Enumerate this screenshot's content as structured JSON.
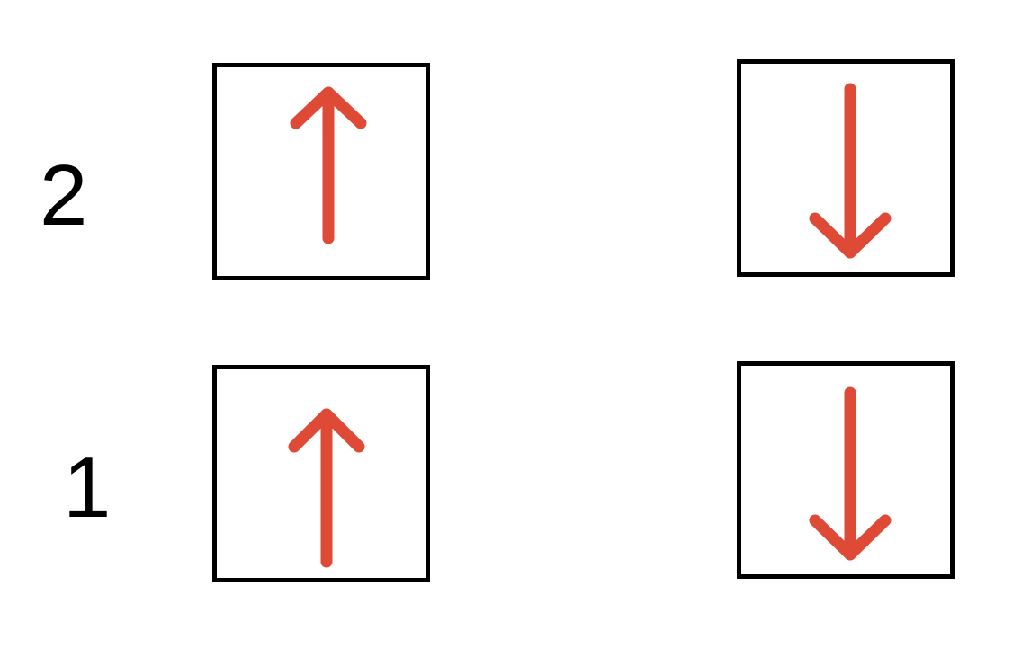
{
  "rows": [
    {
      "label": "2",
      "cells": [
        {
          "direction": "up",
          "icon": "arrow-up-icon"
        },
        {
          "direction": "down",
          "icon": "arrow-down-icon"
        }
      ]
    },
    {
      "label": "1",
      "cells": [
        {
          "direction": "up",
          "icon": "arrow-up-icon"
        },
        {
          "direction": "down",
          "icon": "arrow-down-icon"
        }
      ]
    }
  ],
  "colors": {
    "arrow": "#de4a35",
    "box_border": "#000000",
    "label": "#000000",
    "background": "#ffffff"
  }
}
